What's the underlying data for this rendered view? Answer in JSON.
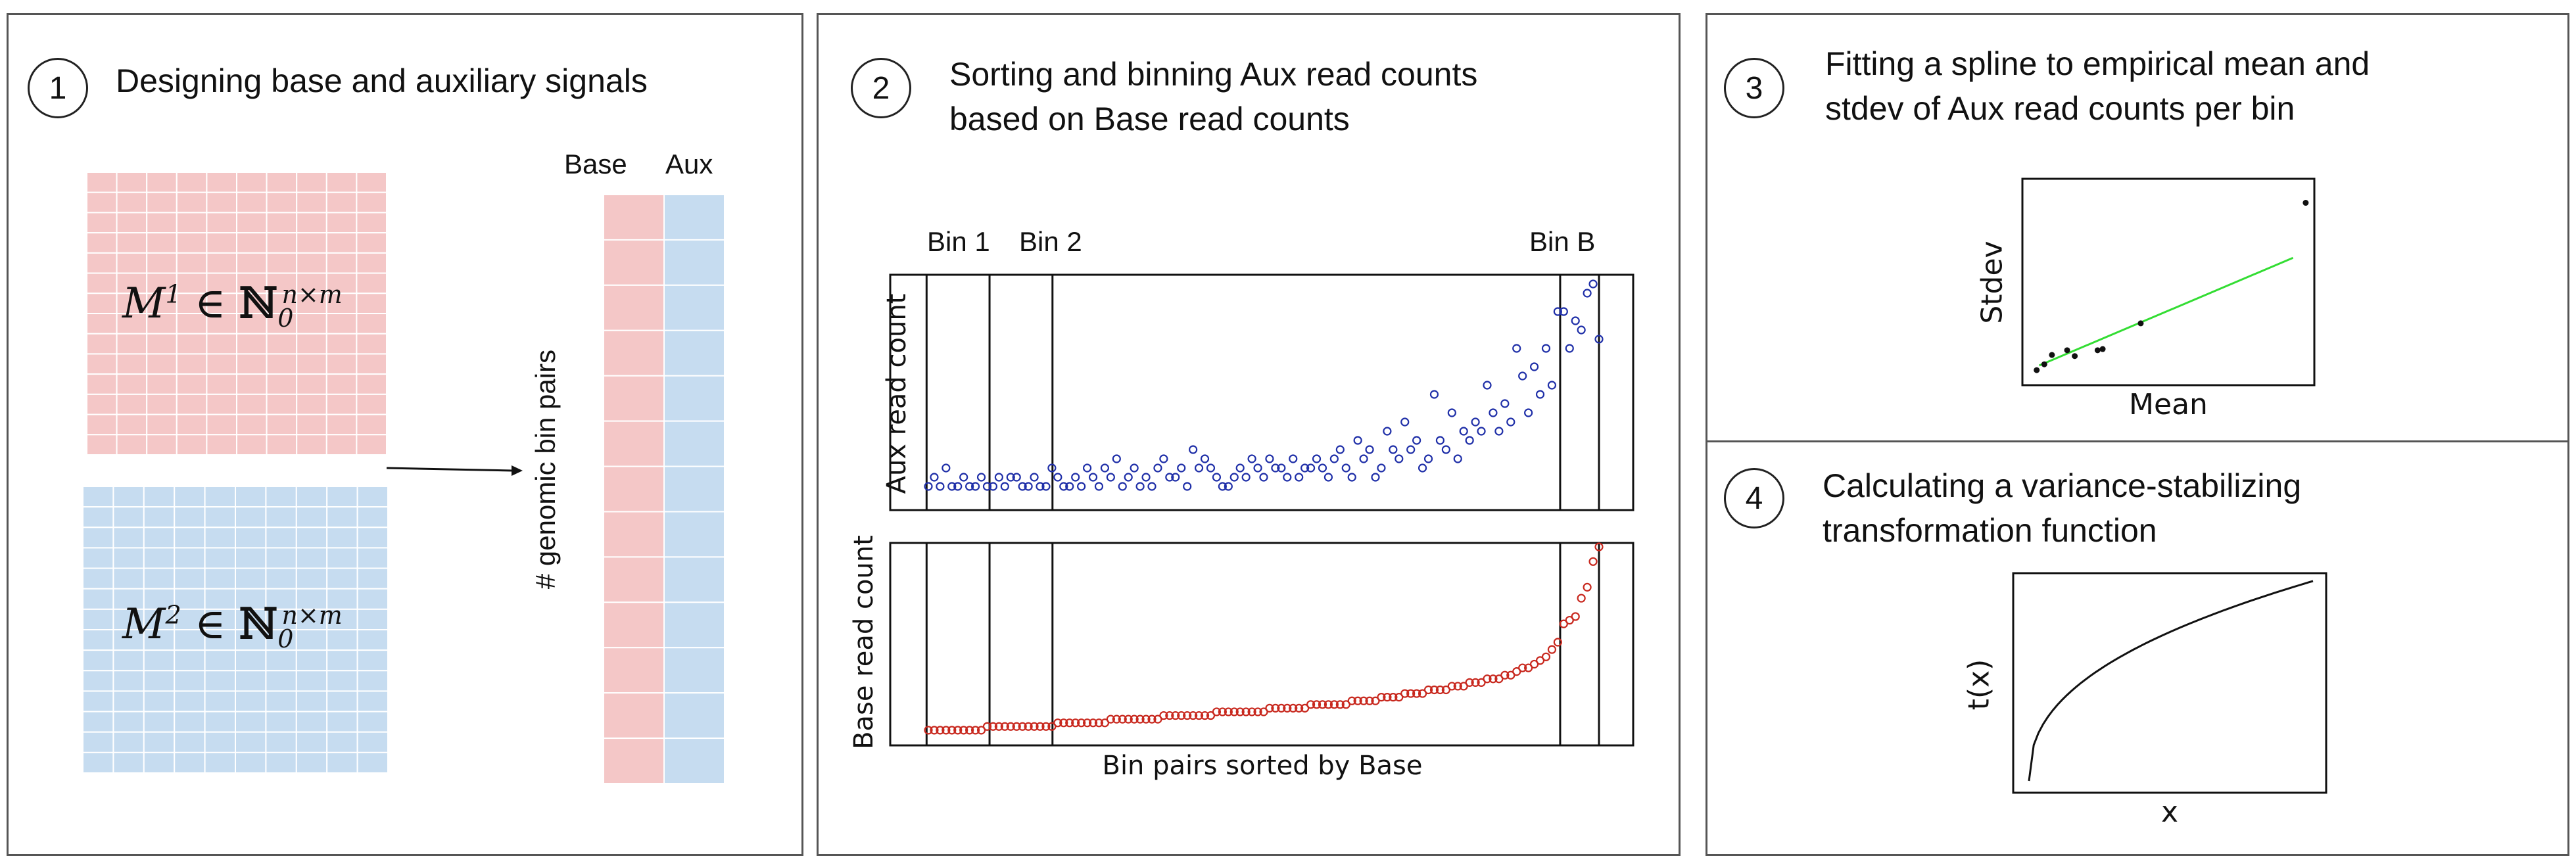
{
  "panel1": {
    "step": "1",
    "title": "Designing base and auxiliary signals",
    "matrix1": {
      "symbol": "M",
      "sup": "1",
      "rel": " ∈ ",
      "set": "ℕ",
      "set_sub": "0",
      "set_sup": "n×m"
    },
    "matrix2": {
      "symbol": "M",
      "sup": "2",
      "rel": " ∈ ",
      "set": "ℕ",
      "set_sub": "0",
      "set_sup": "n×m"
    },
    "col_base": "Base",
    "col_aux": "Aux",
    "ylabel": "# genomic bin pairs",
    "colors": {
      "base": "#f4c7c7",
      "aux": "#c6dcf0"
    }
  },
  "panel2": {
    "step": "2",
    "title_line1": "Sorting and binning Aux read counts",
    "title_line2": "based on Base read counts",
    "bin_labels": [
      "Bin 1",
      "Bin 2",
      "Bin B"
    ],
    "aux_ylabel": "Aux read count",
    "base_ylabel": "Base read count",
    "xlabel": "Bin pairs sorted by Base",
    "colors": {
      "aux_points": "#1f2fa8",
      "base_points": "#c8281e"
    }
  },
  "panel3": {
    "step": "3",
    "title_line1": "Fitting a spline to empirical mean and",
    "title_line2": "stdev of Aux read counts per bin",
    "xlabel": "Mean",
    "ylabel": "Stdev",
    "colors": {
      "fit_line": "#33dd33",
      "points": "#111111"
    }
  },
  "panel4": {
    "step": "4",
    "title_line1": "Calculating a variance-stabilizing",
    "title_line2": "transformation function",
    "xlabel": "x",
    "ylabel": "t(x)"
  },
  "chart_data": [
    {
      "type": "scatter",
      "name_ref": "aux",
      "ylabel": "Aux read count",
      "values": [
        1,
        2,
        1,
        3,
        1,
        1,
        2,
        1,
        1,
        2,
        1,
        1,
        2,
        1,
        2,
        2,
        1,
        1,
        2,
        1,
        1,
        3,
        2,
        1,
        1,
        2,
        1,
        3,
        2,
        1,
        3,
        2,
        4,
        1,
        2,
        3,
        1,
        2,
        1,
        3,
        4,
        2,
        2,
        3,
        1,
        5,
        3,
        4,
        3,
        2,
        1,
        1,
        2,
        3,
        2,
        4,
        3,
        2,
        4,
        3,
        3,
        2,
        4,
        2,
        3,
        3,
        4,
        3,
        2,
        4,
        5,
        3,
        2,
        6,
        4,
        5,
        2,
        3,
        7,
        5,
        4,
        8,
        5,
        6,
        3,
        4,
        11,
        6,
        5,
        9,
        4,
        7,
        6,
        8,
        7,
        12,
        9,
        7,
        10,
        8,
        16,
        13,
        9,
        14,
        11,
        16,
        12,
        20,
        20,
        16,
        19,
        18,
        22,
        23,
        17
      ]
    },
    {
      "type": "scatter",
      "name_ref": "base",
      "ylabel": "Base read count",
      "xlabel": "Bin pairs sorted by Base",
      "values": [
        2,
        2,
        2,
        2,
        2,
        2,
        2,
        2,
        2,
        2,
        3,
        3,
        3,
        3,
        3,
        3,
        3,
        3,
        3,
        3,
        3,
        3,
        4,
        4,
        4,
        4,
        4,
        4,
        4,
        4,
        4,
        5,
        5,
        5,
        5,
        5,
        5,
        5,
        5,
        5,
        6,
        6,
        6,
        6,
        6,
        6,
        6,
        6,
        6,
        7,
        7,
        7,
        7,
        7,
        7,
        7,
        7,
        7,
        8,
        8,
        8,
        8,
        8,
        8,
        8,
        9,
        9,
        9,
        9,
        9,
        9,
        9,
        10,
        10,
        10,
        10,
        10,
        11,
        11,
        11,
        11,
        12,
        12,
        12,
        12,
        13,
        13,
        13,
        13,
        14,
        14,
        14,
        15,
        15,
        15,
        16,
        16,
        16,
        17,
        17,
        18,
        19,
        19,
        20,
        21,
        22,
        24,
        26,
        31,
        32,
        33,
        38,
        41,
        48,
        52
      ]
    },
    {
      "type": "scatter",
      "name_ref": "stdev_vs_mean",
      "xlabel": "Mean",
      "ylabel": "Stdev",
      "points": [
        [
          0.2,
          0.5
        ],
        [
          0.5,
          1.0
        ],
        [
          0.8,
          1.8
        ],
        [
          1.4,
          2.2
        ],
        [
          1.7,
          1.7
        ],
        [
          2.6,
          2.2
        ],
        [
          2.8,
          2.3
        ],
        [
          4.3,
          4.5
        ],
        [
          10.8,
          14.8
        ]
      ],
      "fit_line": [
        [
          0.3,
          0.9
        ],
        [
          10.3,
          10.1
        ]
      ]
    },
    {
      "type": "line",
      "name_ref": "transform",
      "xlabel": "x",
      "ylabel": "t(x)",
      "function": "sqrt"
    }
  ]
}
